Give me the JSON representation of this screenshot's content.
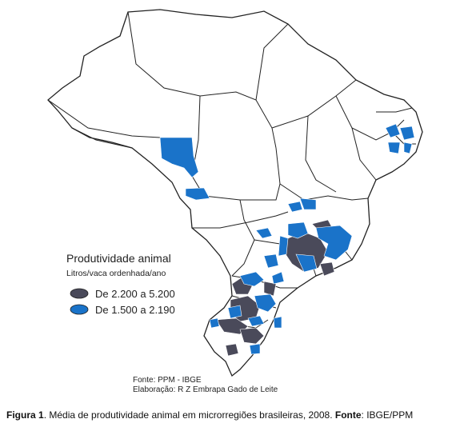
{
  "legend": {
    "title": "Produtividade animal",
    "subtitle": "Litros/vaca ordenhada/ano",
    "items": [
      {
        "label": "De 2.200 a 5.200",
        "color": "#4a4a5a"
      },
      {
        "label": "De 1.500 a 2.190",
        "color": "#1a73c9"
      }
    ]
  },
  "source": {
    "line1": "Fonte: PPM - IBGE",
    "line2": "Elaboração: R Z Embrapa Gado de Leite"
  },
  "caption": {
    "label": "Figura 1",
    "text": ". Média de produtividade animal em microrregiões brasileiras, 2008. ",
    "source_label": "Fonte",
    "source_text": ": IBGE/PPM"
  },
  "colors": {
    "high": "#4a4a5a",
    "medium": "#1a73c9",
    "outline": "#222222",
    "background": "#ffffff"
  }
}
